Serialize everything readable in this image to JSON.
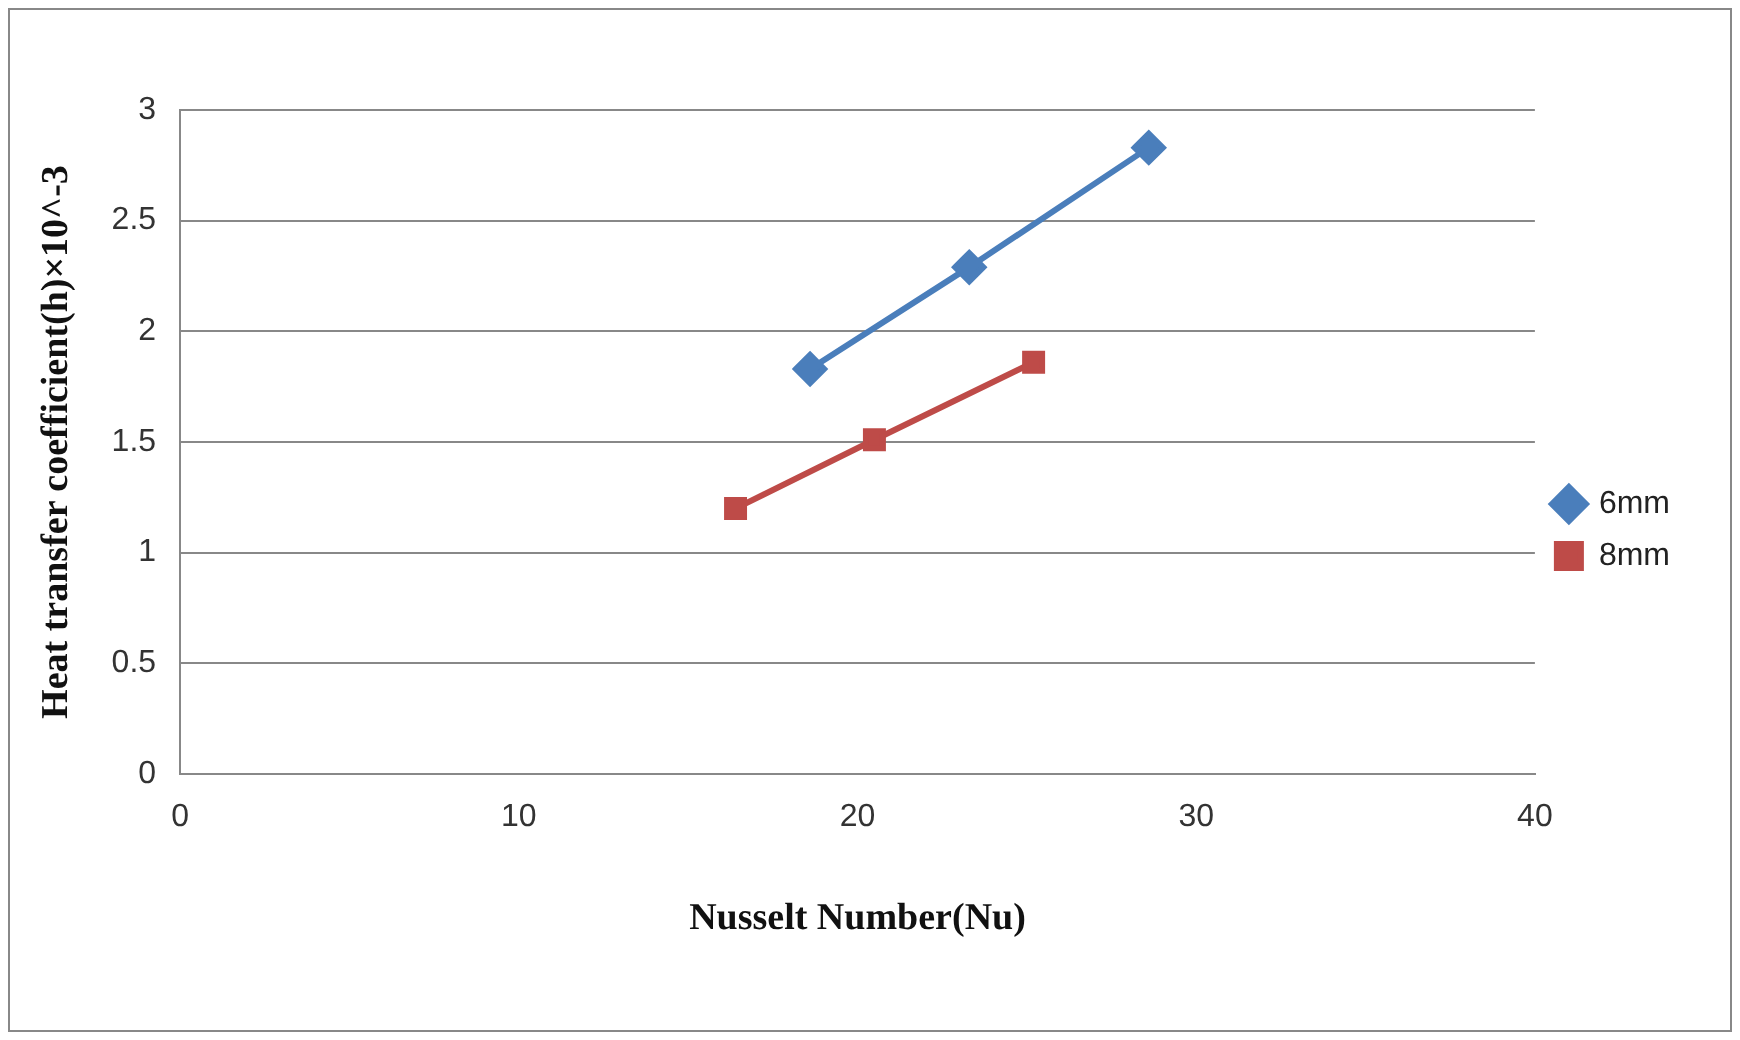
{
  "chart_data": {
    "type": "line",
    "xlabel": "Nusselt Number(Nu)",
    "ylabel": "Heat transfer coefficient(h)×10^-3",
    "xlim": [
      0,
      40
    ],
    "xticks": [
      0,
      10,
      20,
      30,
      40
    ],
    "ylim": [
      0,
      3
    ],
    "yticks": [
      0,
      0.5,
      1,
      1.5,
      2,
      2.5,
      3
    ],
    "grid": "y",
    "legend": "right",
    "series": [
      {
        "name": "6mm",
        "color": "#4a7ebb",
        "marker": "diamond",
        "x": [
          18.6,
          23.3,
          28.6
        ],
        "values": [
          1.83,
          2.29,
          2.83
        ]
      },
      {
        "name": "8mm",
        "color": "#be4b48",
        "marker": "square",
        "x": [
          16.4,
          20.5,
          25.2
        ],
        "values": [
          1.2,
          1.51,
          1.86
        ]
      }
    ]
  }
}
